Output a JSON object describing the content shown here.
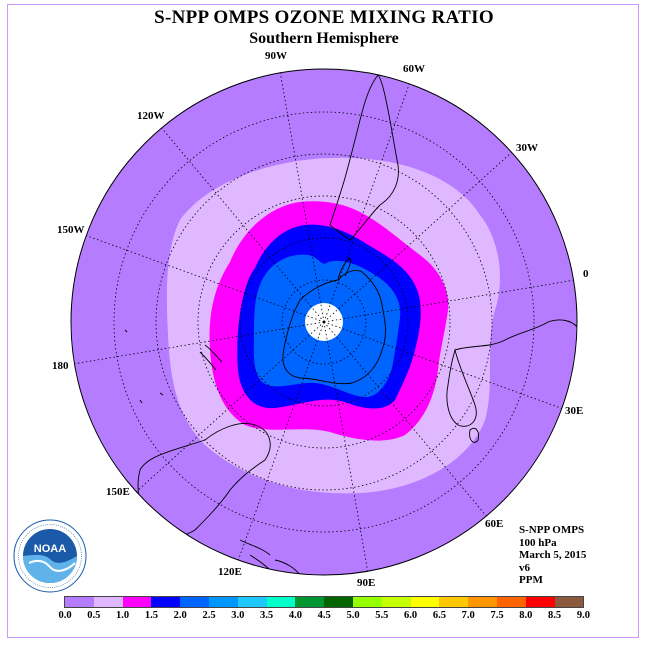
{
  "title": "S-NPP OMPS OZONE MIXING RATIO",
  "subtitle": "Southern Hemisphere",
  "longitude_labels": [
    "90W",
    "60W",
    "30W",
    "0",
    "30E",
    "60E",
    "90E",
    "120E",
    "150E",
    "180",
    "150W",
    "120W"
  ],
  "info": {
    "instrument": "S-NPP OMPS",
    "pressure": "100 hPa",
    "date": "March 5, 2015",
    "version": "v6",
    "units": "PPM"
  },
  "colorbar": {
    "ticks": [
      "0.0",
      "0.5",
      "1.0",
      "1.5",
      "2.0",
      "2.5",
      "3.0",
      "3.5",
      "4.0",
      "4.5",
      "5.0",
      "5.5",
      "6.0",
      "6.5",
      "7.0",
      "7.5",
      "8.0",
      "8.5",
      "9.0"
    ],
    "colors": [
      "#b57cff",
      "#e0b8ff",
      "#ff00ff",
      "#0000ff",
      "#0064ff",
      "#0096ff",
      "#1ec8ff",
      "#00ffc8",
      "#009632",
      "#006400",
      "#96ff00",
      "#c8ff00",
      "#ffff00",
      "#ffc800",
      "#ff9600",
      "#ff6400",
      "#ff0000",
      "#8b5a3c"
    ]
  },
  "logo": {
    "text": "NOAA",
    "icon": "noaa-logo"
  },
  "map_colors": {
    "level_0_0_5": "#b57cff",
    "level_0_5_1_0": "#e0b8ff",
    "level_1_0_1_5": "#ff00ff",
    "level_1_5_2_0": "#0000ff",
    "level_2_0_2_5": "#0064ff",
    "pole_missing": "#ffffff"
  }
}
